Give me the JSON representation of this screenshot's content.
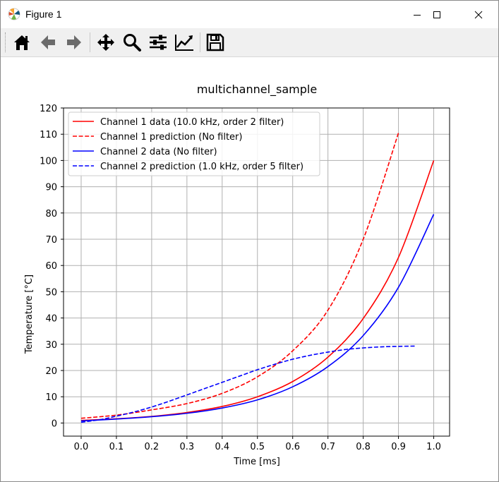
{
  "window": {
    "title": "Figure 1",
    "icons": {
      "app": "matplotlib-icon",
      "minimize": "minimize-icon",
      "maximize": "maximize-icon",
      "close": "close-icon"
    }
  },
  "toolbar": {
    "tools": [
      {
        "id": "home",
        "icon": "home-icon"
      },
      {
        "id": "back",
        "icon": "arrow-left-icon"
      },
      {
        "id": "forward",
        "icon": "arrow-right-icon"
      },
      {
        "id": "pan",
        "icon": "move-icon"
      },
      {
        "id": "zoom",
        "icon": "zoom-icon"
      },
      {
        "id": "subplots",
        "icon": "sliders-icon"
      },
      {
        "id": "edit",
        "icon": "chart-edit-icon"
      },
      {
        "id": "save",
        "icon": "save-icon"
      }
    ]
  },
  "chart_data": {
    "type": "line",
    "title": "multichannel_sample",
    "xlabel": "Time [ms]",
    "ylabel": "Temperature [°C]",
    "xlim": [
      -0.05,
      1.045
    ],
    "ylim": [
      -5,
      120
    ],
    "xticks": [
      "0.0",
      "0.1",
      "0.2",
      "0.3",
      "0.4",
      "0.5",
      "0.6",
      "0.7",
      "0.8",
      "0.9",
      "1.0"
    ],
    "xtick_values": [
      0,
      0.1,
      0.2,
      0.3,
      0.4,
      0.5,
      0.6,
      0.7,
      0.8,
      0.9,
      1.0
    ],
    "yticks": [
      "0",
      "10",
      "20",
      "30",
      "40",
      "50",
      "60",
      "70",
      "80",
      "90",
      "100",
      "110",
      "120"
    ],
    "ytick_values": [
      0,
      10,
      20,
      30,
      40,
      50,
      60,
      70,
      80,
      90,
      100,
      110,
      120
    ],
    "grid": true,
    "legend_position": "upper-left",
    "series": [
      {
        "name": "Channel 1 data (10.0 kHz, order 2 filter)",
        "color": "#ff0000",
        "dash": "solid",
        "x": [
          0,
          0.1,
          0.2,
          0.3,
          0.4,
          0.5,
          0.6,
          0.7,
          0.8,
          0.9,
          1.0
        ],
        "y": [
          1.0,
          1.6,
          2.5,
          4.0,
          6.3,
          10.0,
          15.8,
          25.1,
          39.8,
          63.1,
          100.0
        ]
      },
      {
        "name": "Channel 1 prediction (No filter)",
        "color": "#ff0000",
        "dash": "dashed",
        "x": [
          0,
          0.1,
          0.2,
          0.3,
          0.4,
          0.5,
          0.6,
          0.7,
          0.8,
          0.9
        ],
        "y": [
          1.8,
          3.0,
          5.0,
          7.4,
          11.3,
          17.6,
          27.5,
          43.0,
          70.0,
          110.5
        ]
      },
      {
        "name": "Channel 2 data (No filter)",
        "color": "#0000ff",
        "dash": "solid",
        "x": [
          0,
          0.1,
          0.2,
          0.3,
          0.4,
          0.5,
          0.6,
          0.7,
          0.8,
          0.9,
          1.0
        ],
        "y": [
          0.8,
          1.5,
          2.4,
          3.7,
          5.7,
          8.8,
          13.8,
          21.5,
          33.3,
          51.7,
          79.5
        ]
      },
      {
        "name": "Channel 2 prediction (1.0 kHz, order 5 filter)",
        "color": "#0000ff",
        "dash": "dashed",
        "x": [
          0,
          0.05,
          0.1,
          0.15,
          0.2,
          0.25,
          0.3,
          0.35,
          0.4,
          0.45,
          0.5,
          0.55,
          0.6,
          0.65,
          0.7,
          0.75,
          0.8,
          0.85,
          0.9,
          0.95
        ],
        "y": [
          0.3,
          1.2,
          2.6,
          4.2,
          6.1,
          8.3,
          10.7,
          13.1,
          15.5,
          17.9,
          20.3,
          22.4,
          24.3,
          25.8,
          27.0,
          28.0,
          28.6,
          29.0,
          29.2,
          29.3
        ]
      }
    ]
  }
}
